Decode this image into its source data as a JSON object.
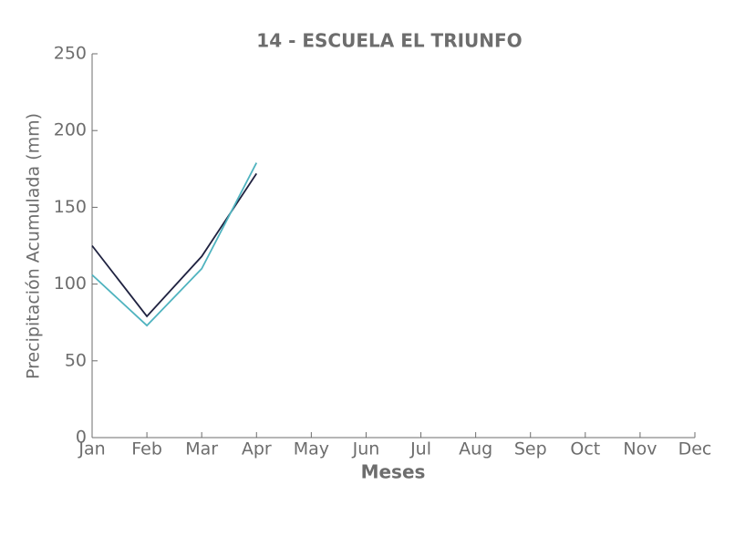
{
  "chart_data": {
    "type": "line",
    "title": "14 - ESCUELA EL TRIUNFO",
    "xlabel": "Meses",
    "ylabel": "Precipitación Acumulada (mm)",
    "categories": [
      "Jan",
      "Feb",
      "Mar",
      "Apr",
      "May",
      "Jun",
      "Jul",
      "Aug",
      "Sep",
      "Oct",
      "Nov",
      "Dec"
    ],
    "series": [
      {
        "color": "#1f2240",
        "values": [
          125,
          79,
          118,
          172,
          null,
          null,
          null,
          null,
          null,
          null,
          null,
          null
        ]
      },
      {
        "color": "#4fb3bf",
        "values": [
          106,
          73,
          110,
          179,
          null,
          null,
          null,
          null,
          null,
          null,
          null,
          null
        ]
      }
    ],
    "ylim": [
      0,
      250
    ],
    "yticks": [
      0,
      50,
      100,
      150,
      200,
      250
    ],
    "grid": false
  }
}
